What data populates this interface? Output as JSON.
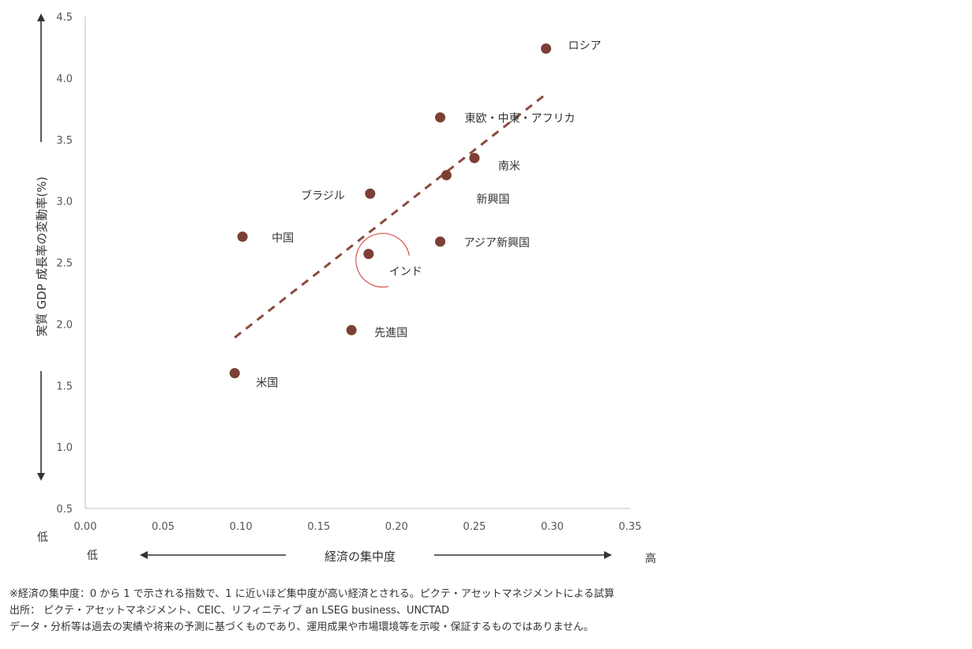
{
  "chart_data": {
    "type": "scatter",
    "title": "",
    "xlabel": "経済の集中度",
    "ylabel": "実質 GDP 成長率の変動率(%)",
    "xlim": [
      0.0,
      0.35
    ],
    "ylim": [
      0.5,
      4.5
    ],
    "x_ticks": [
      "0.00",
      "0.05",
      "0.10",
      "0.15",
      "0.20",
      "0.25",
      "0.30",
      "0.35"
    ],
    "y_ticks": [
      "0.5",
      "1.0",
      "1.5",
      "2.0",
      "2.5",
      "3.0",
      "3.5",
      "4.0",
      "4.5"
    ],
    "x_low_label": "低",
    "x_high_label": "高",
    "y_low_label": "低",
    "point_color": "#7b3f35",
    "trend_color": "#8b4a40",
    "highlight_color": "#d9534f",
    "points": [
      {
        "label": "ロシア",
        "x": 0.296,
        "y": 4.24
      },
      {
        "label": "東欧・中東・アフリカ",
        "x": 0.228,
        "y": 3.68
      },
      {
        "label": "南米",
        "x": 0.25,
        "y": 3.35
      },
      {
        "label": "新興国",
        "x": 0.232,
        "y": 3.21
      },
      {
        "label": "ブラジル",
        "x": 0.183,
        "y": 3.06
      },
      {
        "label": "中国",
        "x": 0.101,
        "y": 2.71
      },
      {
        "label": "アジア新興国",
        "x": 0.228,
        "y": 2.67
      },
      {
        "label": "インド",
        "x": 0.182,
        "y": 2.57
      },
      {
        "label": "先進国",
        "x": 0.171,
        "y": 1.95
      },
      {
        "label": "米国",
        "x": 0.096,
        "y": 1.6
      }
    ],
    "trendline": {
      "x": [
        0.096,
        0.297
      ],
      "y": [
        1.89,
        3.88
      ]
    },
    "highlight": "インド"
  },
  "footnotes": [
    "※経済の集中度：0 から 1 で示される指数で、1 に近いほど集中度が高い経済とされる。ピクテ・アセットマネジメントによる試算",
    "出所： ピクテ・アセットマネジメント、CEIC、リフィニティブ an LSEG business、UNCTAD",
    "データ・分析等は過去の実績や将来の予測に基づくものであり、運用成果や市場環境等を示唆・保証するものではありません。"
  ]
}
